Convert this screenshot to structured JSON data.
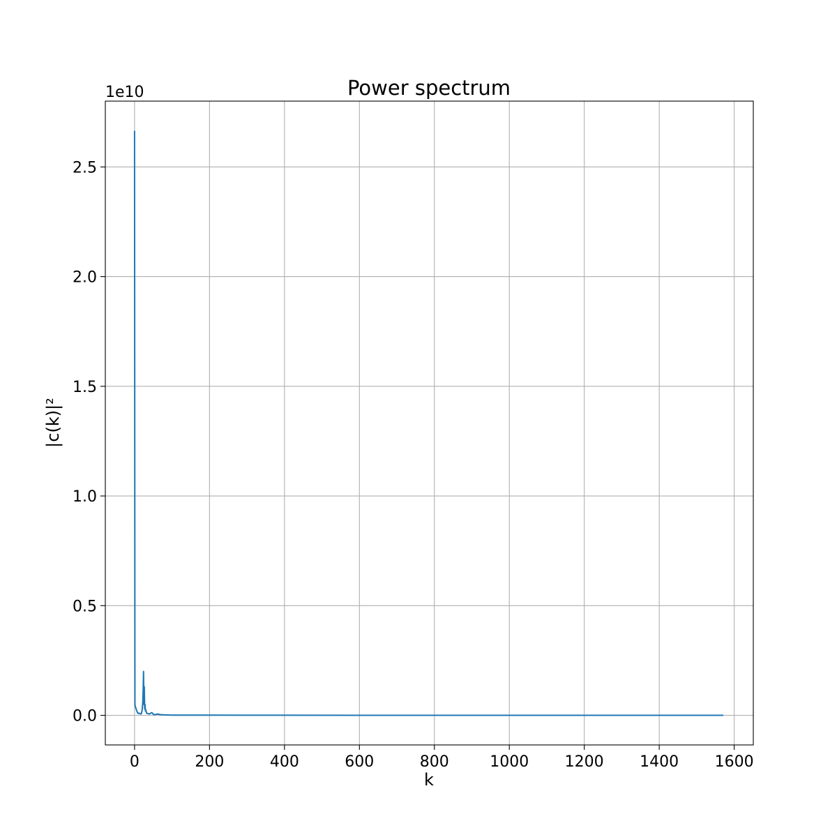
{
  "chart_data": {
    "type": "line",
    "title": "Power spectrum",
    "xlabel": "k",
    "ylabel": "|c(k)|²",
    "y_offset_label": "1e10",
    "xlim": [
      -78,
      1651
    ],
    "ylim": [
      -0.135,
      2.8
    ],
    "xticks": [
      0,
      200,
      400,
      600,
      800,
      1000,
      1200,
      1400,
      1600
    ],
    "xtick_labels": [
      "0",
      "200",
      "400",
      "600",
      "800",
      "1000",
      "1200",
      "1400",
      "1600"
    ],
    "yticks": [
      0.0,
      0.5,
      1.0,
      1.5,
      2.0,
      2.5
    ],
    "ytick_labels": [
      "0.0",
      "0.5",
      "1.0",
      "1.5",
      "2.0",
      "2.5"
    ],
    "grid": true,
    "line_color": "#1f77b4",
    "series": [
      {
        "x": [
          0,
          1,
          2,
          4,
          6,
          8,
          10,
          12,
          14,
          16,
          18,
          20,
          22,
          23,
          24,
          25,
          26,
          27,
          28,
          29,
          30,
          32,
          35,
          40,
          45,
          48,
          50,
          55,
          60,
          70,
          80,
          100,
          150,
          200,
          300,
          400,
          600,
          800,
          1000,
          1200,
          1400,
          1571
        ],
        "y": [
          2.665,
          0.05,
          0.04,
          0.03,
          0.02,
          0.012,
          0.008,
          0.01,
          0.008,
          0.006,
          0.007,
          0.02,
          0.06,
          0.12,
          0.2,
          0.05,
          0.13,
          0.03,
          0.05,
          0.02,
          0.025,
          0.01,
          0.008,
          0.006,
          0.012,
          0.01,
          0.004,
          0.003,
          0.006,
          0.003,
          0.002,
          0.001,
          0.001,
          0.0008,
          0.0005,
          0.0004,
          0.0003,
          0.0002,
          0.0002,
          0.0001,
          0.0001,
          0.0001
        ]
      }
    ]
  }
}
